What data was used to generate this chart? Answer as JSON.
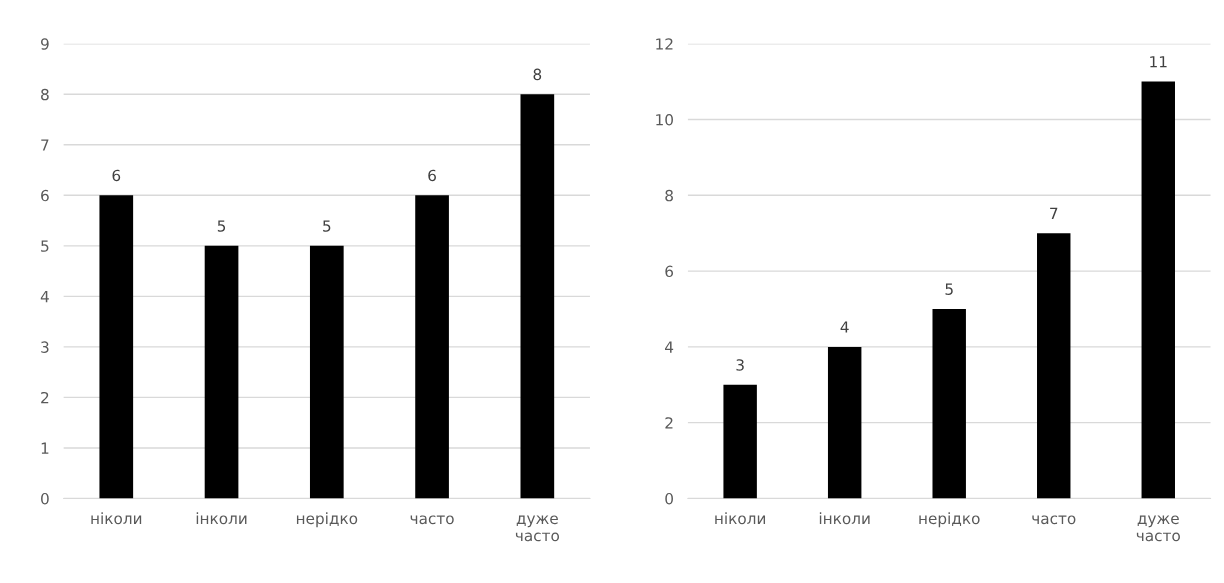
{
  "chart_data": [
    {
      "type": "bar",
      "categories": [
        "ніколи",
        "інколи",
        "нерідко",
        "часто",
        "дуже часто"
      ],
      "values": [
        6,
        5,
        5,
        6,
        8
      ],
      "color": "#000000",
      "ylim": [
        0,
        9
      ],
      "yticks": [
        0,
        1,
        2,
        3,
        4,
        5,
        6,
        7,
        8,
        9
      ],
      "grid": "y",
      "data_labels": true
    },
    {
      "type": "bar",
      "categories": [
        "ніколи",
        "інколи",
        "нерідко",
        "часто",
        "дуже часто"
      ],
      "values": [
        3,
        4,
        5,
        7,
        11
      ],
      "color": "#000000",
      "ylim": [
        0,
        12
      ],
      "yticks": [
        0,
        2,
        4,
        6,
        8,
        10,
        12
      ],
      "grid": "y",
      "data_labels": true
    }
  ]
}
